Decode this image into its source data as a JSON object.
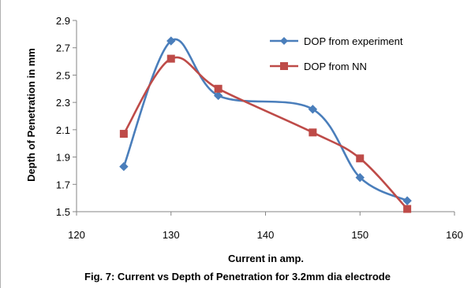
{
  "chart_data": {
    "type": "line",
    "xlabel": "Current in amp.",
    "ylabel": "Depth of Penetration in mm",
    "xlim": [
      120,
      160
    ],
    "ylim": [
      1.5,
      2.9
    ],
    "x_ticks": [
      "120",
      "130",
      "140",
      "150",
      "160"
    ],
    "y_ticks": [
      "1.5",
      "1.7",
      "1.9",
      "2.1",
      "2.3",
      "2.5",
      "2.7",
      "2.9"
    ],
    "grid": false,
    "legend_position": "top-right",
    "series": [
      {
        "name": "DOP from experiment",
        "color": "#4a7ebb",
        "marker": "diamond",
        "x": [
          125,
          130,
          135,
          145,
          150,
          155
        ],
        "y": [
          1.83,
          2.75,
          2.35,
          2.25,
          1.75,
          1.58
        ]
      },
      {
        "name": "DOP from NN",
        "color": "#be4b48",
        "marker": "square",
        "x": [
          125,
          130,
          135,
          145,
          150,
          155
        ],
        "y": [
          2.07,
          2.62,
          2.4,
          2.08,
          1.89,
          1.52
        ]
      }
    ]
  },
  "caption": "Fig. 7: Current vs Depth of Penetration for 3.2mm dia electrode"
}
